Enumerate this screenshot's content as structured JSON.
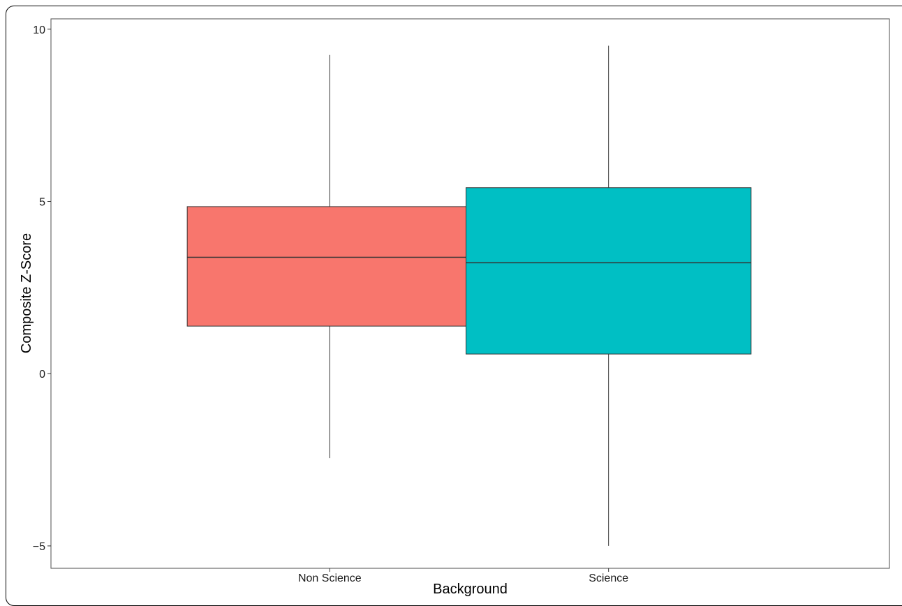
{
  "chart_data": {
    "type": "boxplot",
    "xlabel": "Background",
    "ylabel": "Composite Z-Score",
    "ylim": [
      -5.65,
      10.3
    ],
    "yticks": [
      -5,
      0,
      5,
      10
    ],
    "categories": [
      "Non Science",
      "Science"
    ],
    "boxes": [
      {
        "category": "Non Science",
        "min": -2.45,
        "q1": 1.38,
        "median": 3.38,
        "q3": 4.85,
        "max": 9.25,
        "color": "#F8766D"
      },
      {
        "category": "Science",
        "min": -5.0,
        "q1": 0.57,
        "median": 3.22,
        "q3": 5.4,
        "max": 9.52,
        "color": "#00BFC4"
      }
    ],
    "grid": false,
    "legend": "none"
  }
}
